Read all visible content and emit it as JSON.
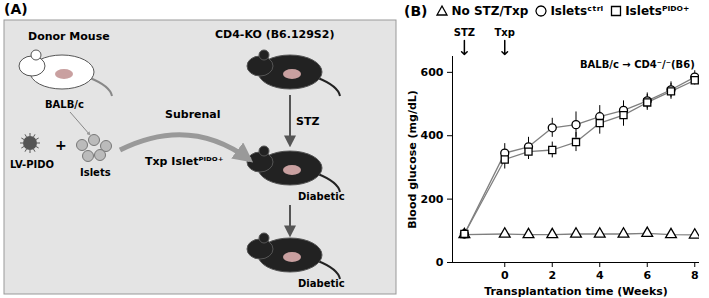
{
  "diagram": {
    "panel": "(A)",
    "donor": {
      "title": "Donor Mouse",
      "strain": "BALB/c"
    },
    "vector": "LV-PIDO",
    "plus": "+",
    "islets": "Islets",
    "recipient": "CD4-KO (B6.129S2)",
    "step1": "STZ",
    "state1": "Diabetic",
    "transplant": [
      "Subrenal",
      "Txp Isletᴾᴵᴰᴼ⁺"
    ],
    "state2": "Diabetic"
  },
  "chart_data": {
    "type": "line",
    "panel": "(B)",
    "x_label": "Transplantation time (Weeks)",
    "y_label": "Blood glucose (mg/dL)",
    "x": [
      -1.7,
      0,
      1,
      2,
      3,
      4,
      5,
      6,
      7,
      8
    ],
    "series": [
      {
        "name": "No STZ/Txp",
        "color": "#7f7f7f",
        "marker": "triangle",
        "values": [
          88,
          90,
          88,
          88,
          90,
          90,
          90,
          92,
          88,
          87
        ],
        "errors": [
          8,
          8,
          8,
          8,
          8,
          8,
          8,
          8,
          8,
          8
        ]
      },
      {
        "name": "Isletsᶜᵗʳˡ",
        "color": "#7f7f7f",
        "marker": "circle",
        "values": [
          90,
          345,
          365,
          425,
          435,
          460,
          480,
          510,
          545,
          585
        ],
        "errors": [
          10,
          30,
          30,
          30,
          40,
          35,
          30,
          25,
          25,
          20
        ]
      },
      {
        "name": "Isletsᴾᴵᴰᴼ⁺",
        "color": "#7f7f7f",
        "marker": "square",
        "values": [
          90,
          325,
          350,
          355,
          380,
          440,
          465,
          505,
          540,
          575
        ],
        "errors": [
          10,
          30,
          25,
          25,
          30,
          35,
          35,
          25,
          25,
          15
        ]
      }
    ],
    "xlim": [
      -2.2,
      8.2
    ],
    "xticks": [
      0,
      2,
      4,
      6,
      8
    ],
    "ylim": [
      0,
      650
    ],
    "yticks": [
      0,
      200,
      400,
      600
    ],
    "annotations": [
      {
        "text": "STZ",
        "x": -1.7
      },
      {
        "text": "Txp",
        "x": 0
      },
      {
        "text": "BALB/c → CD4⁻/⁻(B6)",
        "x": 8,
        "y": 625
      }
    ],
    "grid": false
  }
}
